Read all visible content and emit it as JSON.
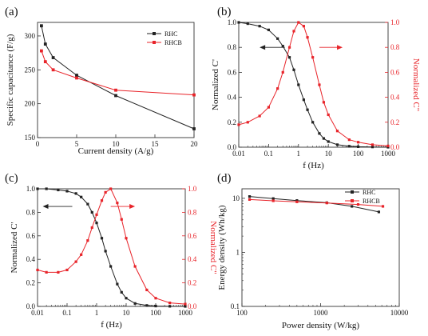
{
  "colors": {
    "black": "#222222",
    "red": "#e8242a"
  },
  "chart_data": [
    {
      "panel": "(a)",
      "type": "line",
      "xlabel": "Current density (A/g)",
      "ylabel": "Specific capacitance (F/g)",
      "xlim": [
        0,
        20
      ],
      "ylim": [
        150,
        320
      ],
      "xticks": [
        0,
        5,
        10,
        15,
        20
      ],
      "yticks": [
        150,
        200,
        250,
        300
      ],
      "grid": false,
      "legend": "top-right",
      "series": [
        {
          "name": "RHC",
          "color": "#222222",
          "x": [
            0.5,
            1,
            2,
            5,
            10,
            20
          ],
          "y": [
            315,
            288,
            268,
            242,
            212,
            163
          ]
        },
        {
          "name": "RHCB",
          "color": "#e8242a",
          "x": [
            0.5,
            1,
            2,
            5,
            10,
            20
          ],
          "y": [
            278,
            262,
            250,
            238,
            220,
            213
          ]
        }
      ]
    },
    {
      "panel": "(b)",
      "type": "line",
      "xscale": "log",
      "xlabel": "f (Hz)",
      "ylabel": "Normalized C'",
      "ylabel_right": "Normalized C\"",
      "xlim": [
        0.01,
        1000
      ],
      "ylim": [
        0,
        1.0
      ],
      "xticks": [
        "0.01",
        "0.1",
        "1",
        "10",
        "100",
        "1000"
      ],
      "yticks": [
        "0.0",
        "0.2",
        "0.4",
        "0.6",
        "0.8",
        "1.0"
      ],
      "series": [
        {
          "name": "C'",
          "color": "#222222",
          "axis": "left",
          "x": [
            0.01,
            0.02,
            0.05,
            0.1,
            0.2,
            0.3,
            0.5,
            0.7,
            1,
            1.5,
            2,
            3,
            5,
            7,
            10,
            20,
            50,
            100,
            300,
            1000
          ],
          "y": [
            1.0,
            0.99,
            0.97,
            0.94,
            0.87,
            0.81,
            0.72,
            0.62,
            0.5,
            0.38,
            0.3,
            0.2,
            0.11,
            0.07,
            0.045,
            0.02,
            0.008,
            0.004,
            0.002,
            0.0
          ]
        },
        {
          "name": "C\"",
          "color": "#e8242a",
          "axis": "right",
          "x": [
            0.01,
            0.02,
            0.05,
            0.1,
            0.2,
            0.3,
            0.5,
            0.7,
            1,
            1.5,
            2,
            3,
            5,
            7,
            10,
            20,
            50,
            100,
            300,
            1000
          ],
          "y": [
            0.18,
            0.2,
            0.25,
            0.32,
            0.47,
            0.6,
            0.8,
            0.93,
            1.0,
            0.97,
            0.88,
            0.72,
            0.5,
            0.36,
            0.26,
            0.13,
            0.06,
            0.04,
            0.02,
            0.01
          ]
        }
      ]
    },
    {
      "panel": "(c)",
      "type": "line",
      "xscale": "log",
      "xlabel": "f (Hz)",
      "ylabel": "Normalized C'",
      "ylabel_right": "Normalized C\"",
      "xlim": [
        0.01,
        1000
      ],
      "ylim": [
        0,
        1.0
      ],
      "xticks": [
        "0.01",
        "0.1",
        "1",
        "10",
        "100",
        "1000"
      ],
      "yticks": [
        "0.0",
        "0.2",
        "0.4",
        "0.6",
        "0.8",
        "1.0"
      ],
      "series": [
        {
          "name": "C'",
          "color": "#222222",
          "axis": "left",
          "x": [
            0.01,
            0.02,
            0.05,
            0.1,
            0.2,
            0.3,
            0.5,
            0.7,
            1,
            1.5,
            2,
            3,
            5,
            7,
            10,
            20,
            50,
            100,
            300,
            1000
          ],
          "y": [
            1.0,
            1.0,
            0.99,
            0.98,
            0.96,
            0.93,
            0.87,
            0.8,
            0.71,
            0.58,
            0.47,
            0.34,
            0.19,
            0.12,
            0.07,
            0.025,
            0.008,
            0.003,
            0.001,
            0.0
          ]
        },
        {
          "name": "C\"",
          "color": "#e8242a",
          "axis": "right",
          "x": [
            0.01,
            0.02,
            0.05,
            0.1,
            0.2,
            0.3,
            0.5,
            0.7,
            1,
            1.5,
            2,
            3,
            5,
            7,
            10,
            20,
            50,
            100,
            300,
            1000
          ],
          "y": [
            0.31,
            0.29,
            0.29,
            0.31,
            0.38,
            0.44,
            0.56,
            0.67,
            0.78,
            0.9,
            0.97,
            1.0,
            0.88,
            0.74,
            0.58,
            0.34,
            0.14,
            0.07,
            0.03,
            0.02
          ]
        }
      ]
    },
    {
      "panel": "(d)",
      "type": "line",
      "xscale": "log",
      "yscale": "log",
      "xlabel": "Power density (W/kg)",
      "ylabel": "Energy density (Wh/kg)",
      "xlim": [
        100,
        10000
      ],
      "ylim": [
        0.1,
        15
      ],
      "xticks": [
        "100",
        "1000",
        "10000"
      ],
      "yticks": [
        "0.1",
        "1",
        "10"
      ],
      "legend": "top-right",
      "series": [
        {
          "name": "RHC",
          "color": "#222222",
          "x": [
            125,
            250,
            500,
            1200,
            2500,
            5500
          ],
          "y": [
            10.8,
            9.9,
            9.1,
            8.3,
            7.1,
            5.6
          ]
        },
        {
          "name": "RHCB",
          "color": "#e8242a",
          "x": [
            125,
            250,
            500,
            1200,
            3000,
            6200
          ],
          "y": [
            9.5,
            9.0,
            8.6,
            8.2,
            7.7,
            7.1
          ]
        }
      ]
    }
  ]
}
